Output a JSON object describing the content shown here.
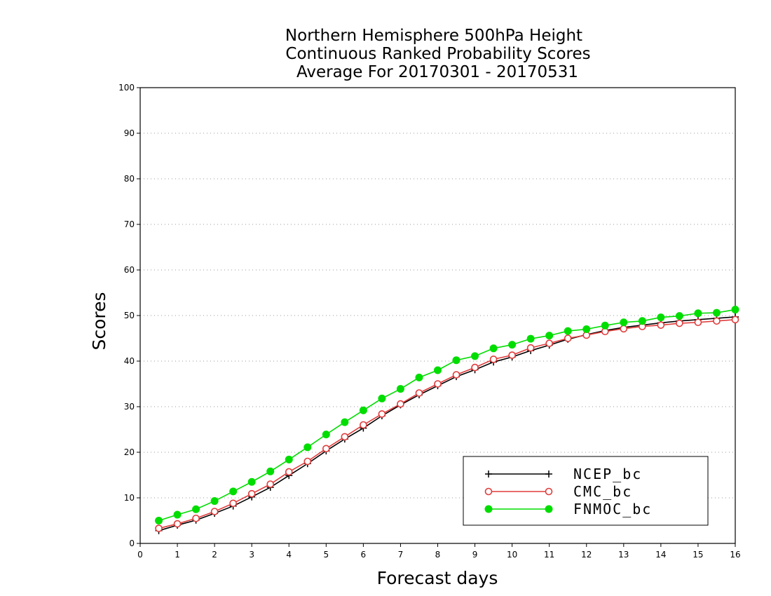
{
  "chart_data": {
    "type": "line",
    "title_lines": [
      "Northern Hemisphere 500hPa Height",
      "Continuous Ranked Probability Scores",
      "Average For 20170301 - 20170531"
    ],
    "xlabel": "Forecast days",
    "ylabel": "Scores",
    "xlim": [
      0,
      16
    ],
    "ylim": [
      0,
      100
    ],
    "xticks": [
      0,
      1,
      2,
      3,
      4,
      5,
      6,
      7,
      8,
      9,
      10,
      11,
      12,
      13,
      14,
      15,
      16
    ],
    "yticks": [
      0,
      10,
      20,
      30,
      40,
      50,
      60,
      70,
      80,
      90,
      100
    ],
    "grid": true,
    "legend_position": "bottom-right",
    "x": [
      0.5,
      1,
      1.5,
      2,
      2.5,
      3,
      3.5,
      4,
      4.5,
      5,
      5.5,
      6,
      6.5,
      7,
      7.5,
      8,
      8.5,
      9,
      9.5,
      10,
      10.5,
      11,
      11.5,
      12,
      12.5,
      13,
      13.5,
      14,
      14.5,
      15,
      15.5,
      16
    ],
    "series": [
      {
        "name": "NCEP_bc",
        "color": "#000000",
        "marker": "plus",
        "values": [
          2.8,
          4.0,
          5.1,
          6.6,
          8.2,
          10.2,
          12.3,
          14.9,
          17.5,
          20.3,
          22.9,
          25.3,
          28.0,
          30.4,
          32.6,
          34.6,
          36.6,
          38.1,
          39.8,
          40.9,
          42.3,
          43.5,
          44.8,
          45.8,
          46.7,
          47.4,
          47.9,
          48.4,
          48.8,
          49.1,
          49.4,
          49.7
        ]
      },
      {
        "name": "CMC_bc",
        "color": "#e03c3c",
        "marker": "open-circle",
        "values": [
          3.3,
          4.3,
          5.5,
          7.0,
          8.8,
          10.9,
          13.0,
          15.7,
          18.0,
          20.8,
          23.4,
          26.0,
          28.4,
          30.6,
          33.0,
          35.0,
          37.0,
          38.6,
          40.4,
          41.3,
          42.9,
          43.9,
          45.0,
          45.7,
          46.5,
          47.1,
          47.6,
          47.9,
          48.3,
          48.5,
          48.8,
          49.1
        ]
      },
      {
        "name": "FNMOC_bc",
        "color": "#00dd00",
        "marker": "filled-circle",
        "values": [
          5.0,
          6.3,
          7.5,
          9.3,
          11.4,
          13.5,
          15.8,
          18.4,
          21.1,
          23.9,
          26.6,
          29.2,
          31.8,
          33.9,
          36.4,
          38.0,
          40.2,
          41.1,
          42.8,
          43.6,
          44.9,
          45.6,
          46.6,
          47.0,
          47.8,
          48.5,
          48.8,
          49.6,
          49.9,
          50.5,
          50.6,
          51.3
        ]
      }
    ]
  }
}
